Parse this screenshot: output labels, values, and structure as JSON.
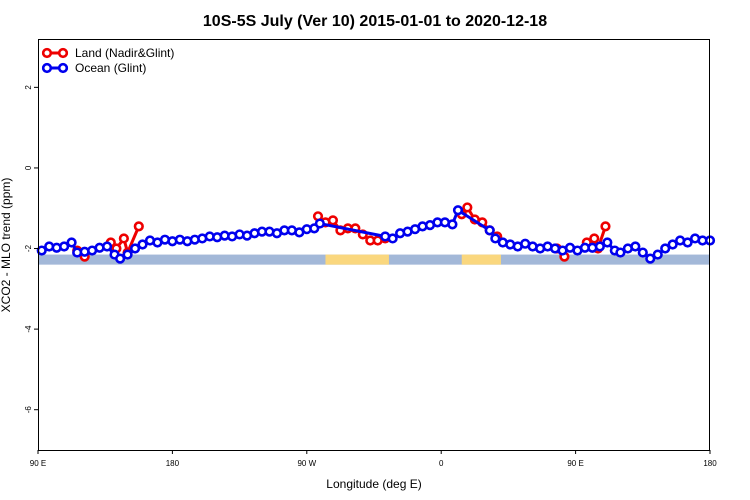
{
  "chart_data": {
    "type": "line",
    "title": "10S-5S July (Ver 10)   2015-01-01 to 2020-12-18",
    "xlabel": "Longitude (deg E)",
    "ylabel": "XCO2 - MLO trend (ppm)",
    "xlim": [
      90,
      450
    ],
    "ylim": [
      -7,
      3.2
    ],
    "x_ticks": [
      {
        "value": 90,
        "label": "90 E"
      },
      {
        "value": 162,
        "label": "180"
      },
      {
        "value": 234,
        "label": "90 W"
      },
      {
        "value": 306,
        "label": "0"
      },
      {
        "value": 378,
        "label": "90 E"
      },
      {
        "value": 450,
        "label": "180"
      }
    ],
    "y_ticks": [
      {
        "value": 2,
        "label": "2"
      },
      {
        "value": 0,
        "label": "0"
      },
      {
        "value": -2,
        "label": "-2"
      },
      {
        "value": -4,
        "label": "-4"
      },
      {
        "value": -6,
        "label": "-6"
      }
    ],
    "legend": {
      "position": "top-left",
      "entries": [
        {
          "name": "Land (Nadir&Glint)",
          "color": "#ee0000"
        },
        {
          "name": "Ocean (Glint)",
          "color": "#0000ee"
        }
      ]
    },
    "land_band": {
      "y_range": [
        -2.4,
        -2.15
      ],
      "ocean_color": "#a3b8d8",
      "land_color": "#fad77e",
      "land_segments": [
        [
          244,
          278
        ],
        [
          317,
          338
        ]
      ]
    },
    "series": [
      {
        "name": "Land (Nadir&Glint)",
        "color": "#ee0000",
        "segments": [
          [
            [
              111,
              -2.05
            ],
            [
              115,
              -2.2
            ]
          ],
          [
            [
              129,
              -1.85
            ],
            [
              132,
              -2.0
            ],
            [
              136,
              -1.75
            ],
            [
              138,
              -2.1
            ],
            [
              144,
              -1.45
            ]
          ],
          [
            [
              240,
              -1.2
            ],
            [
              244,
              -1.35
            ],
            [
              248,
              -1.3
            ],
            [
              252,
              -1.55
            ],
            [
              256,
              -1.5
            ],
            [
              260,
              -1.5
            ],
            [
              264,
              -1.65
            ],
            [
              268,
              -1.8
            ],
            [
              272,
              -1.8
            ],
            [
              276,
              -1.75
            ]
          ],
          [
            [
              317,
              -1.15
            ],
            [
              320,
              -0.98
            ],
            [
              324,
              -1.28
            ],
            [
              328,
              -1.35
            ],
            [
              332,
              -1.55
            ],
            [
              336,
              -1.7
            ]
          ],
          [
            [
              368,
              -2.0
            ],
            [
              372,
              -2.2
            ]
          ],
          [
            [
              384,
              -1.85
            ],
            [
              388,
              -1.75
            ],
            [
              390,
              -2.0
            ],
            [
              394,
              -1.45
            ]
          ]
        ]
      },
      {
        "name": "Ocean (Glint)",
        "color": "#0000ee",
        "x": [
          92,
          96,
          100,
          104,
          108,
          111,
          115,
          119,
          123,
          127,
          131,
          134,
          138,
          142,
          146,
          150,
          154,
          158,
          162,
          166,
          170,
          174,
          178,
          182,
          186,
          190,
          194,
          198,
          202,
          206,
          210,
          214,
          218,
          222,
          226,
          230,
          234,
          238,
          241,
          276,
          280,
          284,
          288,
          292,
          296,
          300,
          304,
          308,
          312,
          315,
          332,
          335,
          339,
          343,
          347,
          351,
          355,
          359,
          363,
          367,
          371,
          375,
          379,
          383,
          387,
          391,
          395,
          399,
          402,
          406,
          410,
          414,
          418,
          422,
          426,
          430,
          434,
          438,
          442,
          446,
          450
        ],
        "y": [
          -2.05,
          -1.95,
          -1.98,
          -1.95,
          -1.85,
          -2.1,
          -2.08,
          -2.05,
          -1.98,
          -1.95,
          -2.15,
          -2.25,
          -2.15,
          -2.0,
          -1.9,
          -1.8,
          -1.85,
          -1.78,
          -1.82,
          -1.78,
          -1.82,
          -1.78,
          -1.75,
          -1.7,
          -1.72,
          -1.68,
          -1.7,
          -1.65,
          -1.68,
          -1.62,
          -1.58,
          -1.58,
          -1.62,
          -1.55,
          -1.55,
          -1.6,
          -1.52,
          -1.5,
          -1.38,
          -1.7,
          -1.75,
          -1.62,
          -1.58,
          -1.52,
          -1.45,
          -1.42,
          -1.35,
          -1.35,
          -1.4,
          -1.05,
          -1.55,
          -1.75,
          -1.85,
          -1.9,
          -1.95,
          -1.88,
          -1.95,
          -2.0,
          -1.95,
          -2.0,
          -2.05,
          -1.98,
          -2.05,
          -1.98,
          -1.98,
          -1.95,
          -1.85,
          -2.05,
          -2.1,
          -2.0,
          -1.95,
          -2.1,
          -2.25,
          -2.15,
          -2.0,
          -1.9,
          -1.8,
          -1.85,
          -1.75,
          -1.8,
          -1.8
        ]
      }
    ]
  }
}
